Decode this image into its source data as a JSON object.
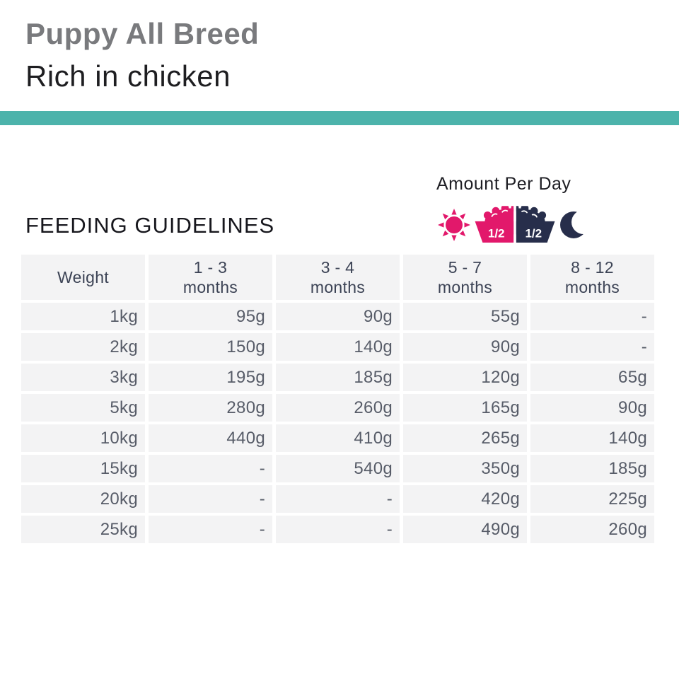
{
  "page": {
    "title": "Puppy All Breed",
    "subtitle": "Rich in chicken"
  },
  "colors": {
    "teal": "#4CB3AB",
    "pink": "#E2186B",
    "navy": "#272E4B"
  },
  "feeding": {
    "heading": "FEEDING GUIDELINES",
    "amount_per_day": {
      "label": "Amount Per Day",
      "day_icon": "sun-icon",
      "night_icon": "moon-icon",
      "bowl": {
        "left_fraction": "1/2",
        "right_fraction": "1/2"
      }
    }
  },
  "table": {
    "columns": [
      "Weight",
      "1 - 3\nmonths",
      "3 - 4\nmonths",
      "5 - 7\nmonths",
      "8 - 12\nmonths"
    ],
    "rows": [
      {
        "weight": "1kg",
        "values": [
          "95g",
          "90g",
          "55g",
          "-"
        ]
      },
      {
        "weight": "2kg",
        "values": [
          "150g",
          "140g",
          "90g",
          "-"
        ]
      },
      {
        "weight": "3kg",
        "values": [
          "195g",
          "185g",
          "120g",
          "65g"
        ]
      },
      {
        "weight": "5kg",
        "values": [
          "280g",
          "260g",
          "165g",
          "90g"
        ]
      },
      {
        "weight": "10kg",
        "values": [
          "440g",
          "410g",
          "265g",
          "140g"
        ]
      },
      {
        "weight": "15kg",
        "values": [
          "-",
          "540g",
          "350g",
          "185g"
        ]
      },
      {
        "weight": "20kg",
        "values": [
          "-",
          "-",
          "420g",
          "225g"
        ]
      },
      {
        "weight": "25kg",
        "values": [
          "-",
          "-",
          "490g",
          "260g"
        ]
      }
    ]
  }
}
